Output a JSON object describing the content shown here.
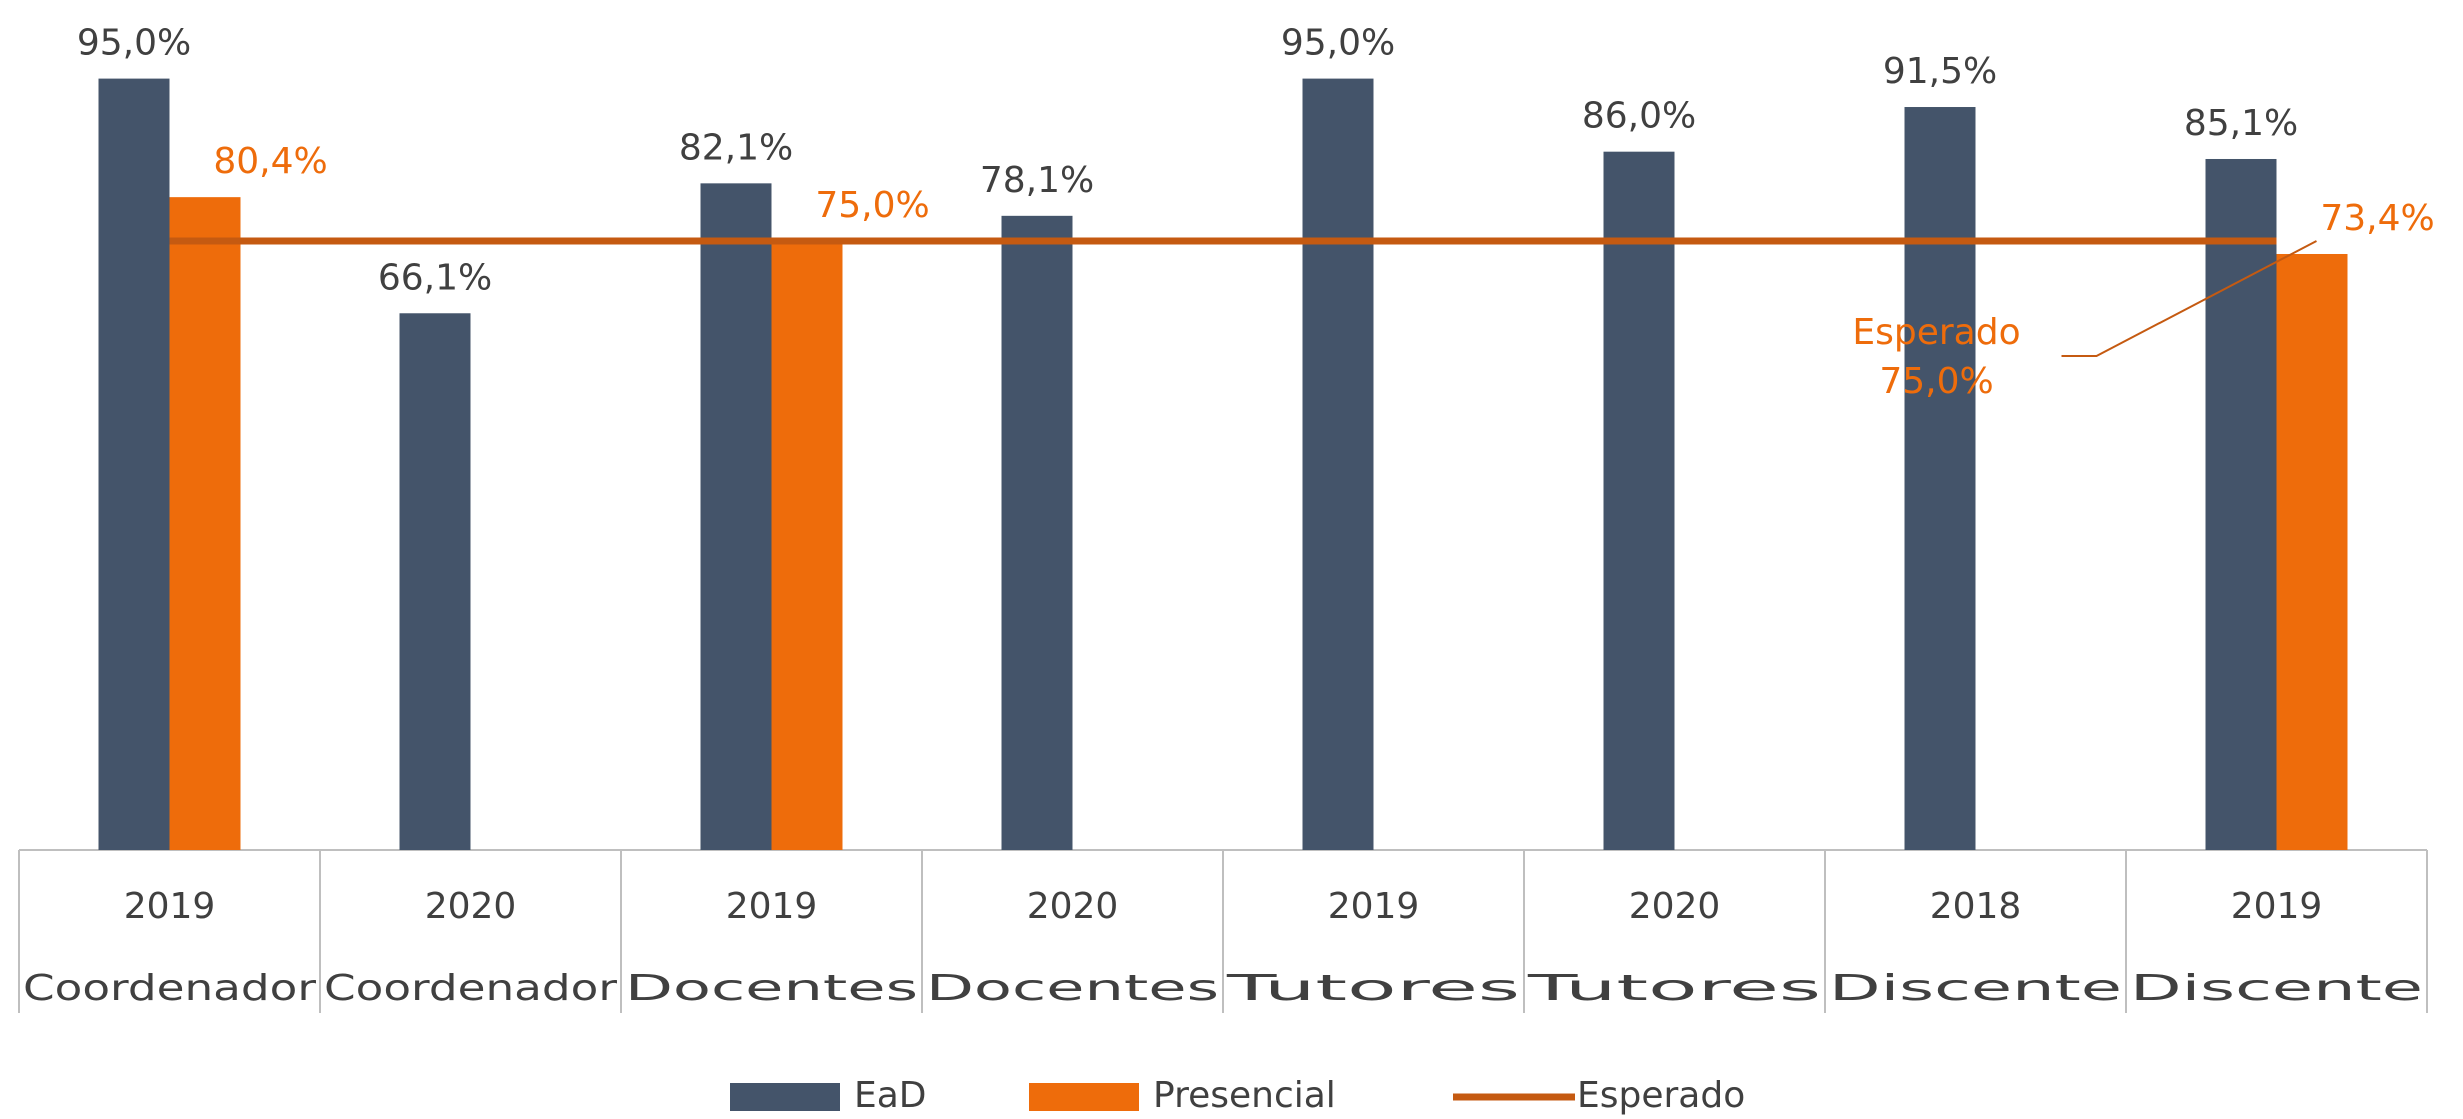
{
  "chart_data": {
    "type": "bar",
    "categories": [
      "2019",
      "2020",
      "2019",
      "2020",
      "2019",
      "2020",
      "2018",
      "2019"
    ],
    "category_groups": [
      "Coordenador",
      "Coordenador",
      "Docentes",
      "Docentes",
      "Tutores",
      "Tutores",
      "Discente",
      "Discente"
    ],
    "ylim": [
      0,
      100
    ],
    "series": [
      {
        "name": "EaD",
        "color": "#44546a",
        "label_color": "#404040",
        "values": [
          95.0,
          66.1,
          82.1,
          78.1,
          95.0,
          86.0,
          91.5,
          85.1
        ],
        "value_labels": [
          "95,0%",
          "66,1%",
          "82,1%",
          "78,1%",
          "95,0%",
          "86,0%",
          "91,5%",
          "85,1%"
        ]
      },
      {
        "name": "Presencial",
        "color": "#ee6c0b",
        "label_color": "#ee6c0b",
        "values": [
          80.4,
          null,
          75.0,
          null,
          null,
          null,
          null,
          73.4
        ],
        "value_labels": [
          "80,4%",
          null,
          "75,0%",
          null,
          null,
          null,
          null,
          "73,4%"
        ]
      },
      {
        "name": "Esperado",
        "type": "line",
        "color": "#c55a11",
        "label_color": "#ee6c0b",
        "values": [
          75.0,
          75.0,
          75.0,
          75.0,
          75.0,
          75.0,
          75.0,
          75.0
        ],
        "value_labels": [
          null,
          null,
          null,
          null,
          null,
          null,
          null,
          "75,0%"
        ]
      }
    ],
    "legend": "bottom"
  }
}
